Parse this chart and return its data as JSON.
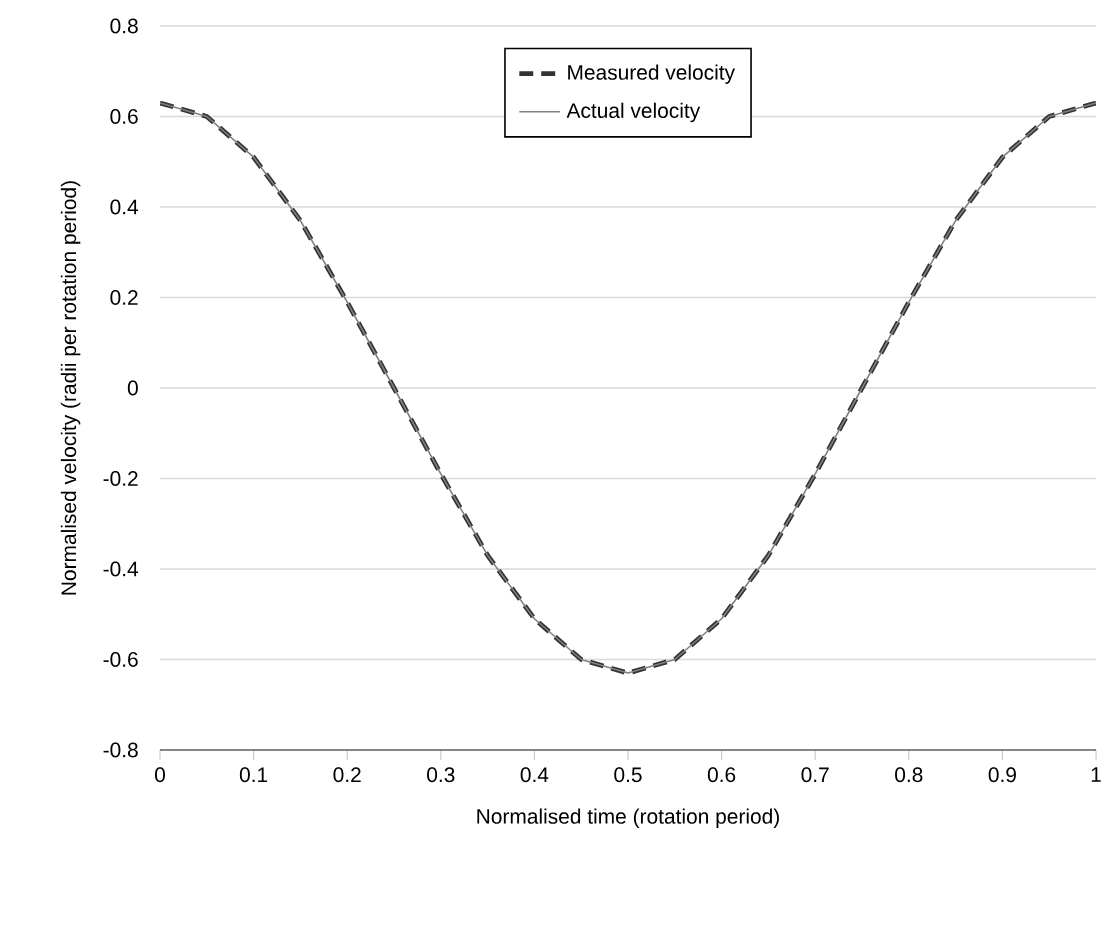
{
  "chart_data": {
    "type": "line",
    "xlabel": "Normalised time (rotation period)",
    "ylabel": "Normalised velocity (radii per rotation period)",
    "x": [
      0,
      0.05,
      0.1,
      0.15,
      0.2,
      0.25,
      0.3,
      0.35,
      0.4,
      0.45,
      0.5,
      0.55,
      0.6,
      0.65,
      0.7,
      0.75,
      0.8,
      0.85,
      0.9,
      0.95,
      1
    ],
    "series": [
      {
        "name": "Measured velocity",
        "color": "#333333",
        "line_style": "dashed",
        "values": [
          0.63,
          0.6,
          0.51,
          0.37,
          0.19,
          0.0,
          -0.19,
          -0.37,
          -0.51,
          -0.6,
          -0.63,
          -0.6,
          -0.51,
          -0.37,
          -0.19,
          0.0,
          0.19,
          0.37,
          0.51,
          0.6,
          0.63
        ]
      },
      {
        "name": "Actual velocity",
        "color": "#808080",
        "line_style": "solid",
        "values": [
          0.63,
          0.6,
          0.51,
          0.37,
          0.19,
          0.0,
          -0.19,
          -0.37,
          -0.51,
          -0.6,
          -0.63,
          -0.6,
          -0.51,
          -0.37,
          -0.19,
          0.0,
          0.19,
          0.37,
          0.51,
          0.6,
          0.63
        ]
      }
    ],
    "xlim": [
      0,
      1
    ],
    "xticks": [
      0,
      0.1,
      0.2,
      0.3,
      0.4,
      0.5,
      0.6,
      0.7,
      0.8,
      0.9,
      1
    ],
    "ylim": [
      -0.8,
      0.8
    ],
    "yticks": [
      -0.8,
      -0.6,
      -0.4,
      -0.2,
      0,
      0.2,
      0.4,
      0.6,
      0.8
    ],
    "grid": "y",
    "legend": "top"
  }
}
